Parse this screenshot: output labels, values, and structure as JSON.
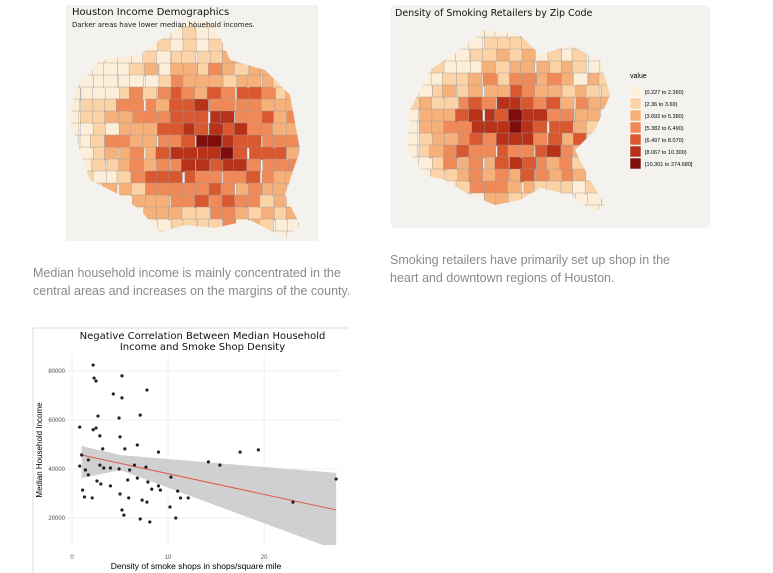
{
  "income_map": {
    "title": "Houston Income Demographics",
    "subtitle": "Darker areas have lower median houehold incomes.",
    "caption": "Median household income is mainly concentrated in the central areas and increases on the margins of the county."
  },
  "retailer_map": {
    "title": "Density of Smoking Retailers by Zip Code",
    "caption": "Smoking retailers have primarily set up shop in the heart and downtown regions of Houston.",
    "legend": {
      "title": "value",
      "items": [
        {
          "label": "[0.227 to 2.360)",
          "color": "#fdeed9"
        },
        {
          "label": "[2.36 to 3.69)",
          "color": "#fbd3a6"
        },
        {
          "label": "[3.692 to 5.380)",
          "color": "#f6b07a"
        },
        {
          "label": "[5.382 to 6.490)",
          "color": "#ef8a58"
        },
        {
          "label": "[6.497 to 8.070)",
          "color": "#d9582f"
        },
        {
          "label": "[8.067 to 10.300)",
          "color": "#b8321a"
        },
        {
          "label": "[10.301 to 274.680]",
          "color": "#7f0d0b"
        }
      ]
    }
  },
  "chart_data": {
    "type": "scatter",
    "title": "Negative Correlation Between Median Household Income and Smoke Shop Density",
    "x_label": "Density of smoke shops in shops/square mile",
    "y_label": "Median Household Income",
    "x": [
      2.2,
      2.5,
      2.3,
      5.2,
      4.3,
      7.8,
      5.2,
      2.7,
      7.1,
      2.5,
      2.2,
      2.9,
      4.9,
      5.0,
      3.2,
      5.5,
      6.8,
      9.0,
      1.0,
      1.7,
      2.9,
      3.3,
      4.0,
      4.9,
      6.0,
      6.5,
      7.7,
      0.8,
      1.4,
      1.7,
      2.6,
      3.0,
      4.0,
      5.8,
      6.8,
      7.9,
      8.3,
      9.0,
      9.2,
      1.1,
      2.1,
      1.3,
      5.0,
      5.9,
      7.3,
      7.8,
      10.3,
      11.0,
      11.3,
      12.1,
      5.2,
      5.4,
      7.1,
      8.1,
      10.2,
      10.8,
      14.2,
      15.4,
      17.5,
      19.4,
      23.0,
      27.5,
      0.8
    ],
    "values": [
      82400,
      75900,
      77100,
      78000,
      70600,
      72200,
      69000,
      61600,
      62000,
      56700,
      56000,
      53500,
      60800,
      53100,
      48200,
      48200,
      49800,
      46900,
      45700,
      43700,
      41600,
      40400,
      40400,
      40000,
      39600,
      41600,
      40800,
      41200,
      39600,
      37600,
      35100,
      33900,
      33100,
      35500,
      36300,
      34700,
      31800,
      33100,
      31400,
      31400,
      28200,
      28600,
      29800,
      28200,
      27300,
      26500,
      36700,
      31000,
      28200,
      28200,
      23300,
      21200,
      19600,
      18400,
      24500,
      20000,
      42900,
      41600,
      46900,
      47800,
      26500,
      35900,
      57100
    ],
    "color": "#222222",
    "fit": {
      "x": [
        1,
        27.5
      ],
      "values": [
        45700,
        23300
      ],
      "color": "#e05a4e"
    },
    "band": {
      "x": [
        1,
        5,
        27.5
      ],
      "upper": [
        49400,
        45700,
        38400
      ],
      "lower": [
        36300,
        39600,
        7000
      ],
      "color": "#c4c4c4"
    },
    "xlim": [
      -2.5,
      27.9
    ],
    "ylim": [
      9000,
      86500
    ],
    "xticks": [
      0,
      10,
      20
    ],
    "yticks": [
      20000,
      40000,
      60000,
      80000
    ],
    "grid": true
  }
}
